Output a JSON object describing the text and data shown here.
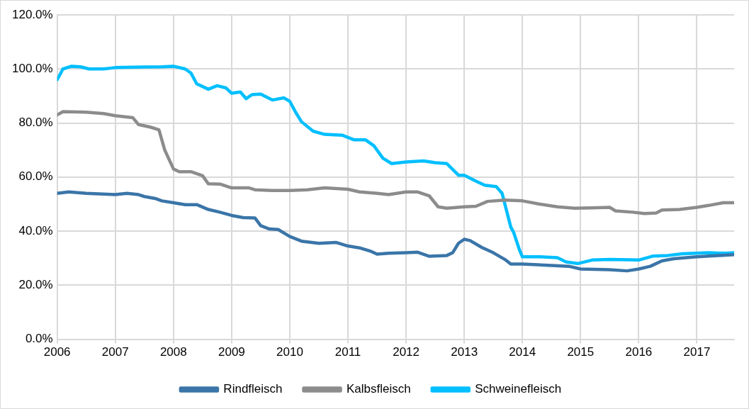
{
  "chart_data": {
    "type": "line",
    "legend": "bottom",
    "grid": true,
    "marker": "none",
    "line_style": "solid",
    "xlim": [
      2006,
      2017.64
    ],
    "xticks": [
      2006,
      2007,
      2008,
      2009,
      2010,
      2011,
      2012,
      2013,
      2014,
      2015,
      2016,
      2017
    ],
    "ylim": [
      0,
      120
    ],
    "yticks": [
      {
        "value": 0,
        "label": "0.0%"
      },
      {
        "value": 20,
        "label": "20.0%"
      },
      {
        "value": 40,
        "label": "40.0%"
      },
      {
        "value": 60,
        "label": "60.0%"
      },
      {
        "value": 80,
        "label": "80.0%"
      },
      {
        "value": 100,
        "label": "100.0%"
      },
      {
        "value": 120,
        "label": "120.0%"
      }
    ],
    "series": [
      {
        "name": "Rindfleisch",
        "color": "#3a75a8",
        "x": [
          2006,
          2006.2,
          2006.5,
          2007,
          2007.2,
          2007.4,
          2007.5,
          2007.7,
          2007.8,
          2008,
          2008.2,
          2008.4,
          2008.6,
          2008.8,
          2009,
          2009.2,
          2009.4,
          2009.5,
          2009.65,
          2009.8,
          2010,
          2010.2,
          2010.5,
          2010.8,
          2011,
          2011.2,
          2011.4,
          2011.5,
          2011.7,
          2012,
          2012.2,
          2012.4,
          2012.7,
          2012.8,
          2012.9,
          2013,
          2013.1,
          2013.3,
          2013.5,
          2013.7,
          2013.8,
          2014,
          2014.5,
          2014.8,
          2015,
          2015.5,
          2015.8,
          2016,
          2016.2,
          2016.4,
          2016.6,
          2017,
          2017.64
        ],
        "values": [
          54,
          54.5,
          54,
          53.5,
          54,
          53.5,
          52.8,
          52,
          51.2,
          50.5,
          49.8,
          49.8,
          48,
          47,
          45.8,
          45,
          44.9,
          42,
          40.8,
          40.6,
          38,
          36.3,
          35.5,
          35.8,
          34.5,
          33.8,
          32.5,
          31.5,
          31.8,
          32,
          32.2,
          30.7,
          31,
          32,
          35.5,
          37,
          36.5,
          34,
          32,
          29.5,
          27.8,
          27.8,
          27.3,
          27,
          26,
          25.7,
          25.3,
          26,
          27,
          29,
          29.8,
          30.5,
          31.3
        ]
      },
      {
        "name": "Kalbsfleisch",
        "color": "#8c8c8c",
        "x": [
          2006,
          2006.1,
          2006.5,
          2006.8,
          2007,
          2007.3,
          2007.4,
          2007.6,
          2007.75,
          2007.85,
          2008,
          2008.1,
          2008.3,
          2008.5,
          2008.6,
          2008.8,
          2009,
          2009.3,
          2009.4,
          2009.7,
          2010,
          2010.3,
          2010.6,
          2011,
          2011.2,
          2011.5,
          2011.7,
          2012,
          2012.2,
          2012.4,
          2012.55,
          2012.7,
          2013,
          2013.2,
          2013.4,
          2013.7,
          2014,
          2014.3,
          2014.6,
          2014.9,
          2015.2,
          2015.5,
          2015.6,
          2015.9,
          2016.1,
          2016.3,
          2016.4,
          2016.7,
          2017,
          2017.2,
          2017.45,
          2017.64
        ],
        "values": [
          83,
          84.2,
          84,
          83.5,
          82.7,
          82,
          79.4,
          78.5,
          77.5,
          70,
          63,
          62,
          62,
          60.5,
          57.5,
          57.4,
          56,
          56,
          55.3,
          55,
          55,
          55.3,
          56,
          55.5,
          54.5,
          54,
          53.5,
          54.5,
          54.5,
          53,
          49,
          48.5,
          49,
          49.2,
          51,
          51.5,
          51.2,
          50,
          49,
          48.5,
          48.6,
          48.8,
          47.5,
          47,
          46.5,
          46.7,
          47.8,
          48,
          48.8,
          49.5,
          50.5,
          50.5
        ]
      },
      {
        "name": "Schweinefleisch",
        "color": "#00bfff",
        "x": [
          2006,
          2006.1,
          2006.25,
          2006.4,
          2006.55,
          2006.8,
          2007,
          2007.5,
          2007.8,
          2008,
          2008.2,
          2008.3,
          2008.4,
          2008.6,
          2008.75,
          2008.9,
          2009,
          2009.15,
          2009.25,
          2009.35,
          2009.5,
          2009.7,
          2009.9,
          2010,
          2010.1,
          2010.2,
          2010.4,
          2010.6,
          2010.9,
          2011.1,
          2011.3,
          2011.45,
          2011.6,
          2011.75,
          2012,
          2012.3,
          2012.5,
          2012.7,
          2012.9,
          2013,
          2013.2,
          2013.35,
          2013.55,
          2013.65,
          2013.8,
          2013.85,
          2013.95,
          2014,
          2014.3,
          2014.6,
          2014.75,
          2014.95,
          2015.2,
          2015.5,
          2016,
          2016.25,
          2016.5,
          2016.75,
          2017.2,
          2017.5,
          2017.64
        ],
        "values": [
          96,
          100,
          101,
          100.8,
          100,
          100,
          100.5,
          100.7,
          100.8,
          101,
          100,
          98.5,
          94.5,
          92.5,
          93.8,
          93,
          91,
          91.5,
          89,
          90.5,
          90.7,
          88.5,
          89.3,
          88,
          84,
          80.5,
          77,
          75.8,
          75.5,
          73.8,
          73.8,
          71.5,
          67,
          65,
          65.6,
          66,
          65.3,
          65,
          60.7,
          60.7,
          58.5,
          57,
          56.5,
          54,
          41.5,
          39.5,
          33,
          30.5,
          30.5,
          30.2,
          28.6,
          28,
          29.3,
          29.5,
          29.3,
          30.8,
          31,
          31.6,
          32,
          31.8,
          32
        ]
      }
    ]
  }
}
